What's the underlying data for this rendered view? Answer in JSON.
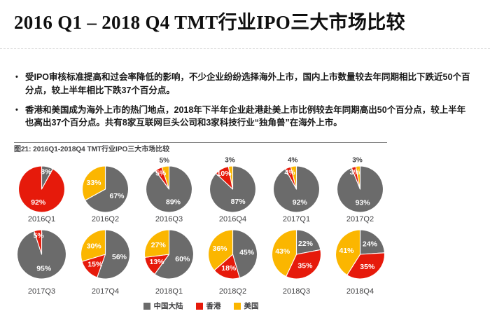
{
  "slide": {
    "title": "2016 Q1 – 2018 Q4 TMT行业IPO三大市场比较",
    "bullet_marker": "•",
    "bullets": [
      "受IPO审核标准提高和过会率降低的影响，不少企业纷纷选择海外上市，国内上市数量较去年同期相比下跌近50个百分点，较上半年相比下跌37个百分点。",
      "香港和美国成为海外上市的热门地点，2018年下半年企业赴港赴美上市比例较去年同期高出50个百分点，较上半年也高出37个百分点。共有8家互联网巨头公司和3家科技行业“独角兽”在海外上市。"
    ]
  },
  "chart_data": {
    "type": "pie",
    "title": "图21: 2016Q1-2018Q4 TMT行业IPO三大市场比较",
    "unit": "%",
    "legend_position": "bottom",
    "series_names": [
      "中国大陆",
      "香港",
      "美国"
    ],
    "colors": [
      "#6b6b6b",
      "#e61a0b",
      "#fbb600"
    ],
    "label_color_inside": "#ffffff",
    "label_color_outside": "#3f3f41",
    "rows": [
      [
        {
          "quarter": "2016Q1",
          "values": [
            8,
            92,
            0
          ],
          "outside_labels": []
        },
        {
          "quarter": "2016Q2",
          "values": [
            67,
            0,
            33
          ],
          "outside_labels": []
        },
        {
          "quarter": "2016Q3",
          "values": [
            89,
            5,
            5
          ],
          "outside_labels": [
            2
          ]
        },
        {
          "quarter": "2016Q4",
          "values": [
            87,
            10,
            3
          ],
          "outside_labels": [
            2
          ]
        },
        {
          "quarter": "2017Q1",
          "values": [
            92,
            4,
            4
          ],
          "outside_labels": [
            2
          ]
        },
        {
          "quarter": "2017Q2",
          "values": [
            93,
            3,
            3
          ],
          "outside_labels": [
            2
          ]
        }
      ],
      [
        {
          "quarter": "2017Q3",
          "values": [
            95,
            5,
            0
          ],
          "outside_labels": []
        },
        {
          "quarter": "2017Q4",
          "values": [
            56,
            15,
            30
          ],
          "outside_labels": []
        },
        {
          "quarter": "2018Q1",
          "values": [
            60,
            13,
            27
          ],
          "outside_labels": []
        },
        {
          "quarter": "2018Q2",
          "values": [
            45,
            18,
            36
          ],
          "outside_labels": []
        },
        {
          "quarter": "2018Q3",
          "values": [
            22,
            35,
            43
          ],
          "outside_labels": []
        },
        {
          "quarter": "2018Q4",
          "values": [
            24,
            35,
            41
          ],
          "outside_labels": []
        }
      ]
    ]
  }
}
